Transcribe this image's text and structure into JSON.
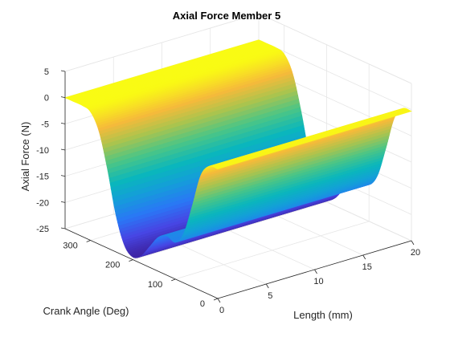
{
  "chart_data": {
    "type": "surface",
    "title": "Axial Force Member 5",
    "xlabel": "Length (mm)",
    "ylabel": "Crank Angle (Deg)",
    "zlabel": "Axial Force (N)",
    "xlim": [
      0,
      20
    ],
    "ylim": [
      0,
      360
    ],
    "zlim": [
      -25,
      5
    ],
    "xticks": [
      0,
      5,
      10,
      15,
      20
    ],
    "yticks": [
      0,
      100,
      200,
      300
    ],
    "zticks": [
      5,
      0,
      -5,
      -10,
      -15,
      -20,
      -25
    ],
    "grid": true,
    "colormap": "parula",
    "x_range": [
      0,
      20
    ],
    "crank_angle": [
      0,
      20,
      40,
      60,
      80,
      100,
      120,
      140,
      160,
      180,
      200,
      220,
      240,
      260,
      280,
      300,
      320,
      340,
      360
    ],
    "axial_force": [
      -0.3,
      -0.5,
      -3.0,
      -9.5,
      -15.5,
      -18.0,
      -17.5,
      -18.5,
      -21.0,
      -23.5,
      -24.5,
      -23.0,
      -18.0,
      -10.0,
      -3.5,
      -0.5,
      0.0,
      0.0,
      0.0
    ],
    "note_force_independent_of_length": true
  }
}
